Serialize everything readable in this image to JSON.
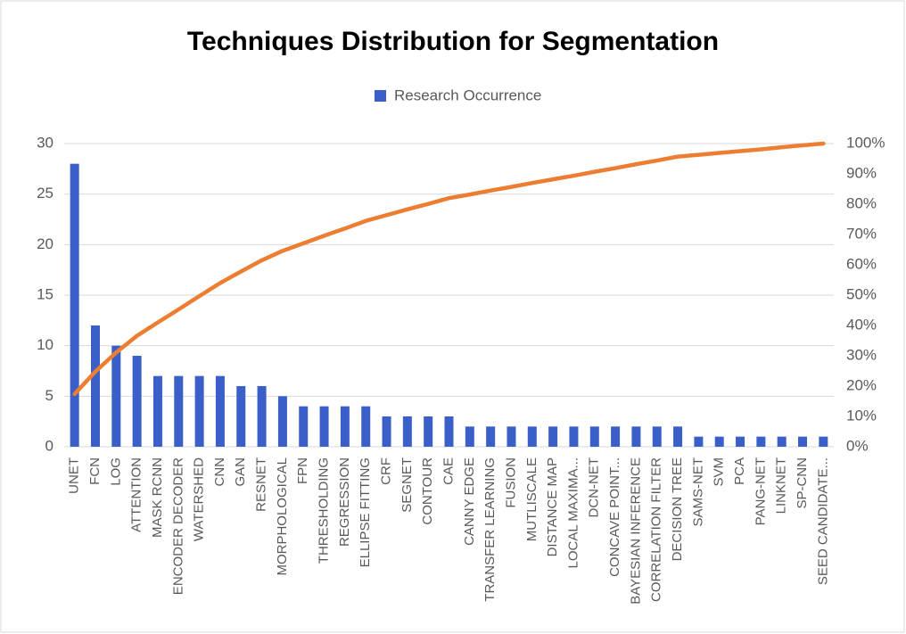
{
  "chart_data": {
    "type": "pareto",
    "title": "Techniques Distribution for Segmentation",
    "categories": [
      "UNET",
      "FCN",
      "LOG",
      "ATTENTION",
      "MASK RCNN",
      "ENCODER DECODER",
      "WATERSHED",
      "CNN",
      "GAN",
      "RESNET",
      "MORPHOLOGICAL",
      "FPN",
      "THRESHOLDING",
      "REGRESSION",
      "ELLIPSE FITTING",
      "CRF",
      "SEGNET",
      "CONTOUR",
      "CAE",
      "CANNY EDGE",
      "TRANSFER LEARNING",
      "FUSION",
      "MUTLISCALE",
      "DISTANCE MAP",
      "LOCAL MAXIMA...",
      "DCN-NET",
      "CONCAVE POINT...",
      "BAYESIAN INFERENCE",
      "CORRELATION FILTER",
      "DECISION TREE",
      "SAMS-NET",
      "SVM",
      "PCA",
      "PANG-NET",
      "LINKNET",
      "SP-CNN",
      "SEED CANDIDATE..."
    ],
    "series": [
      {
        "name": "Research Occurrence",
        "color": "#3a5fc8",
        "values": [
          28,
          12,
          10,
          9,
          7,
          7,
          7,
          7,
          6,
          6,
          5,
          4,
          4,
          4,
          4,
          3,
          3,
          3,
          3,
          2,
          2,
          2,
          2,
          2,
          2,
          2,
          2,
          2,
          2,
          2,
          1,
          1,
          1,
          1,
          1,
          1,
          1
        ]
      },
      {
        "color": "#ed7d31",
        "axis": "y2",
        "values": [
          17.4,
          24.8,
          31.1,
          36.6,
          41.0,
          45.3,
          49.7,
          54.0,
          57.8,
          61.5,
          64.6,
          67.1,
          69.6,
          72.0,
          74.5,
          76.4,
          78.3,
          80.1,
          82.0,
          83.2,
          84.5,
          85.7,
          87.0,
          88.2,
          89.4,
          90.7,
          91.9,
          93.2,
          94.4,
          95.7,
          96.3,
          96.9,
          97.5,
          98.1,
          98.8,
          99.4,
          100
        ]
      }
    ],
    "ylim": [
      0,
      30
    ],
    "yticks": [
      0,
      5,
      10,
      15,
      20,
      25,
      30
    ],
    "y2lim": [
      0,
      100
    ],
    "y2ticks": [
      {
        "value": 0,
        "label": "0%"
      },
      {
        "value": 10,
        "label": "10%"
      },
      {
        "value": 20,
        "label": "20%"
      },
      {
        "value": 30,
        "label": "30%"
      },
      {
        "value": 40,
        "label": "40%"
      },
      {
        "value": 50,
        "label": "50%"
      },
      {
        "value": 60,
        "label": "60%"
      },
      {
        "value": 70,
        "label": "70%"
      },
      {
        "value": 80,
        "label": "80%"
      },
      {
        "value": 90,
        "label": "90%"
      },
      {
        "value": 100,
        "label": "100%"
      }
    ],
    "grid": true,
    "legend": "top"
  }
}
